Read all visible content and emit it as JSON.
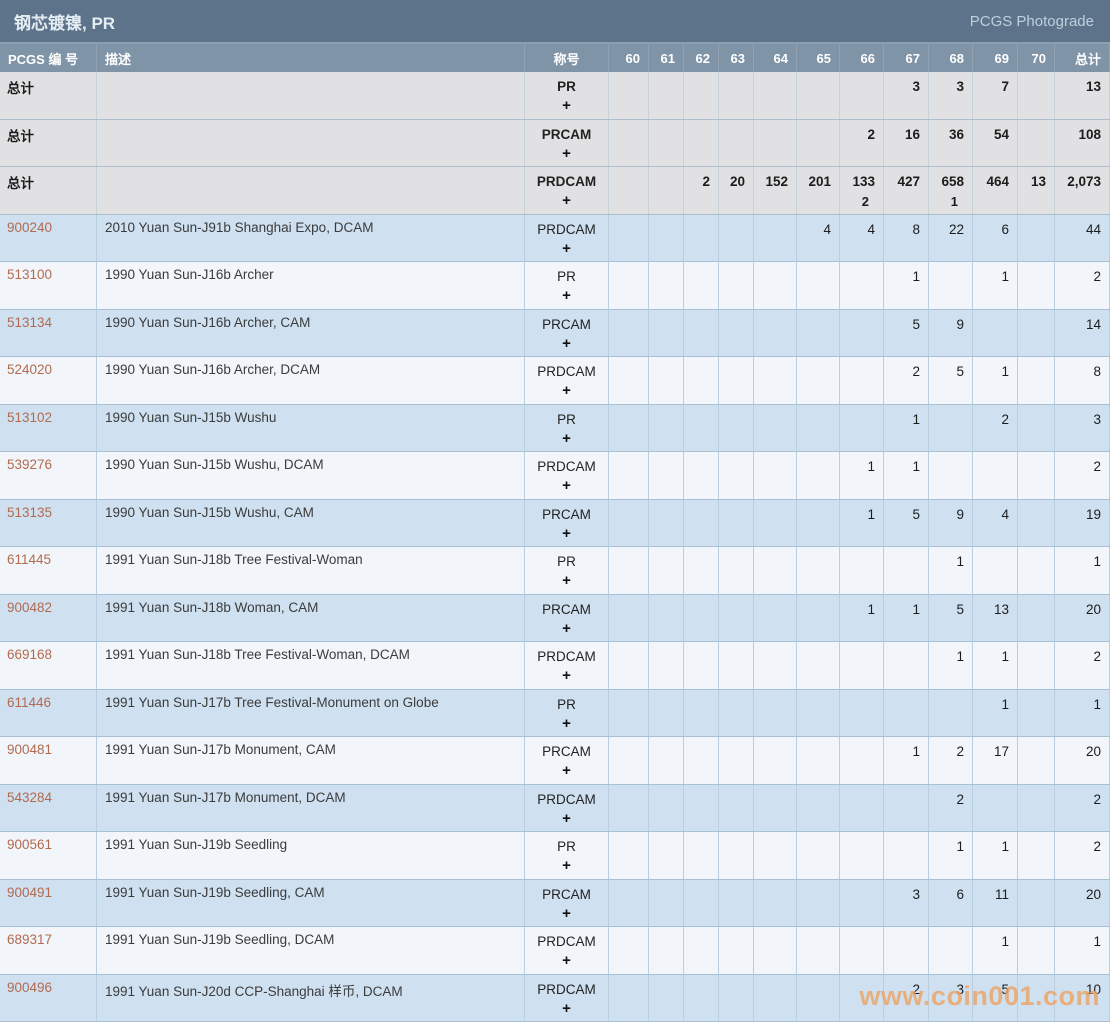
{
  "header": {
    "title": "钢芯镀镍, PR",
    "brand": "PCGS Photograde"
  },
  "table": {
    "col_pcgs": "PCGS 编 号",
    "col_desc": "描述",
    "col_grade": "称号",
    "grade_columns": [
      "60",
      "61",
      "62",
      "63",
      "64",
      "65",
      "66",
      "67",
      "68",
      "69",
      "70"
    ],
    "col_total": "总计",
    "plus_sign": "+",
    "rows": [
      {
        "pcgs": "总计",
        "is_total": true,
        "desc": "",
        "grade": "PR",
        "values": [
          "",
          "",
          "",
          "",
          "",
          "",
          "",
          "3",
          "3",
          "7",
          ""
        ],
        "total": "13"
      },
      {
        "pcgs": "总计",
        "is_total": true,
        "desc": "",
        "grade": "PRCAM",
        "values": [
          "",
          "",
          "",
          "",
          "",
          "",
          "2",
          "16",
          "36",
          "54",
          ""
        ],
        "total": "108"
      },
      {
        "pcgs": "总计",
        "is_total": true,
        "desc": "",
        "grade": "PRDCAM",
        "values": [
          "",
          "",
          "2",
          "20",
          "152",
          "201",
          "133",
          "427",
          "658",
          "464",
          "13"
        ],
        "plus_values": [
          "",
          "",
          "",
          "",
          "",
          "",
          "2",
          "",
          "1",
          "",
          ""
        ],
        "total": "2,073"
      },
      {
        "pcgs": "900240",
        "desc": "2010 Yuan Sun-J91b Shanghai Expo, DCAM",
        "grade": "PRDCAM",
        "values": [
          "",
          "",
          "",
          "",
          "",
          "4",
          "4",
          "8",
          "22",
          "6",
          ""
        ],
        "total": "44"
      },
      {
        "pcgs": "513100",
        "desc": "1990 Yuan Sun-J16b Archer",
        "grade": "PR",
        "values": [
          "",
          "",
          "",
          "",
          "",
          "",
          "",
          "1",
          "",
          "1",
          ""
        ],
        "total": "2"
      },
      {
        "pcgs": "513134",
        "desc": "1990 Yuan Sun-J16b Archer, CAM",
        "grade": "PRCAM",
        "values": [
          "",
          "",
          "",
          "",
          "",
          "",
          "",
          "5",
          "9",
          "",
          ""
        ],
        "total": "14"
      },
      {
        "pcgs": "524020",
        "desc": "1990 Yuan Sun-J16b Archer, DCAM",
        "grade": "PRDCAM",
        "values": [
          "",
          "",
          "",
          "",
          "",
          "",
          "",
          "2",
          "5",
          "1",
          ""
        ],
        "total": "8"
      },
      {
        "pcgs": "513102",
        "desc": "1990 Yuan Sun-J15b Wushu",
        "grade": "PR",
        "values": [
          "",
          "",
          "",
          "",
          "",
          "",
          "",
          "1",
          "",
          "2",
          ""
        ],
        "total": "3"
      },
      {
        "pcgs": "539276",
        "desc": "1990 Yuan Sun-J15b Wushu, DCAM",
        "grade": "PRDCAM",
        "values": [
          "",
          "",
          "",
          "",
          "",
          "",
          "1",
          "1",
          "",
          "",
          ""
        ],
        "total": "2"
      },
      {
        "pcgs": "513135",
        "desc": "1990 Yuan Sun-J15b Wushu, CAM",
        "grade": "PRCAM",
        "values": [
          "",
          "",
          "",
          "",
          "",
          "",
          "1",
          "5",
          "9",
          "4",
          ""
        ],
        "total": "19"
      },
      {
        "pcgs": "611445",
        "desc": "1991 Yuan Sun-J18b Tree Festival-Woman",
        "grade": "PR",
        "values": [
          "",
          "",
          "",
          "",
          "",
          "",
          "",
          "",
          "1",
          "",
          ""
        ],
        "total": "1"
      },
      {
        "pcgs": "900482",
        "desc": "1991 Yuan Sun-J18b Woman, CAM",
        "grade": "PRCAM",
        "values": [
          "",
          "",
          "",
          "",
          "",
          "",
          "1",
          "1",
          "5",
          "13",
          ""
        ],
        "total": "20"
      },
      {
        "pcgs": "669168",
        "desc": "1991 Yuan Sun-J18b Tree Festival-Woman, DCAM",
        "grade": "PRDCAM",
        "values": [
          "",
          "",
          "",
          "",
          "",
          "",
          "",
          "",
          "1",
          "1",
          ""
        ],
        "total": "2"
      },
      {
        "pcgs": "611446",
        "desc": "1991 Yuan Sun-J17b Tree Festival-Monument on Globe",
        "grade": "PR",
        "values": [
          "",
          "",
          "",
          "",
          "",
          "",
          "",
          "",
          "",
          "1",
          ""
        ],
        "total": "1"
      },
      {
        "pcgs": "900481",
        "desc": "1991 Yuan Sun-J17b Monument, CAM",
        "grade": "PRCAM",
        "values": [
          "",
          "",
          "",
          "",
          "",
          "",
          "",
          "1",
          "2",
          "17",
          ""
        ],
        "total": "20"
      },
      {
        "pcgs": "543284",
        "desc": "1991 Yuan Sun-J17b Monument, DCAM",
        "grade": "PRDCAM",
        "values": [
          "",
          "",
          "",
          "",
          "",
          "",
          "",
          "",
          "2",
          "",
          ""
        ],
        "total": "2"
      },
      {
        "pcgs": "900561",
        "desc": "1991 Yuan Sun-J19b Seedling",
        "grade": "PR",
        "values": [
          "",
          "",
          "",
          "",
          "",
          "",
          "",
          "",
          "1",
          "1",
          ""
        ],
        "total": "2"
      },
      {
        "pcgs": "900491",
        "desc": "1991 Yuan Sun-J19b Seedling, CAM",
        "grade": "PRCAM",
        "values": [
          "",
          "",
          "",
          "",
          "",
          "",
          "",
          "3",
          "6",
          "11",
          ""
        ],
        "total": "20"
      },
      {
        "pcgs": "689317",
        "desc": "1991 Yuan Sun-J19b Seedling, DCAM",
        "grade": "PRDCAM",
        "values": [
          "",
          "",
          "",
          "",
          "",
          "",
          "",
          "",
          "",
          "1",
          ""
        ],
        "total": "1"
      },
      {
        "pcgs": "900496",
        "desc": "1991 Yuan Sun-J20d CCP-Shanghai 样币, DCAM",
        "grade": "PRDCAM",
        "values": [
          "",
          "",
          "",
          "",
          "",
          "",
          "",
          "2",
          "3",
          "5",
          ""
        ],
        "total": "10"
      }
    ]
  },
  "watermark": "www.coin001.com",
  "colors": {
    "titlebar_bg": "#5d7389",
    "header_bg": "#8094a8",
    "row_blue": "#cfe1f1",
    "row_light": "#f2f6fa",
    "row_total": "#e1e1e3",
    "link": "#b26a4f",
    "watermark": "#eda466"
  }
}
